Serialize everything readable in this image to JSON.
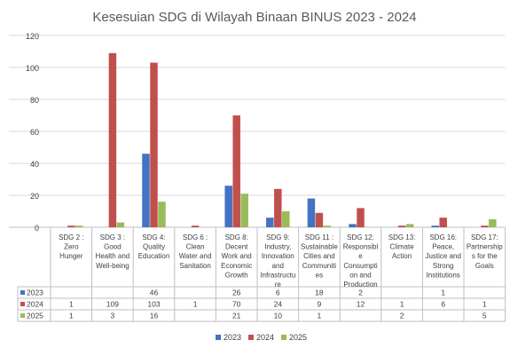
{
  "chart_data": {
    "type": "bar",
    "title": "Kesesuian SDG di Wilayah Binaan BINUS 2023 - 2024",
    "categories": [
      "SDG 2 : Zero Hunger",
      "SDG 3 : Good Health and Well-being",
      "SDG 4: Quality Education",
      "SDG 6 : Clean Water and Sanitation",
      "SDG 8: Decent Work and Economic Growth",
      "SDG 9: Industry, Innovation and Infrastructure",
      "SDG 11 : Sustainable Cities and Communities",
      "SDG 12: Responsible Consumption and Production",
      "SDG 13: Climate Action",
      "SDG 16: Peace, Justice and Strong Institutions",
      "SDG 17: Partnerships for the Goals"
    ],
    "category_label_lines": [
      [
        "SDG 2 :",
        "Zero",
        "Hunger"
      ],
      [
        "SDG 3 :",
        "Good",
        "Health and",
        "Well-being"
      ],
      [
        "SDG 4:",
        "Quality",
        "Education"
      ],
      [
        "SDG 6 :",
        "Clean",
        "Water and",
        "Sanitation"
      ],
      [
        "SDG 8:",
        "Decent",
        "Work and",
        "Economic",
        "Growth"
      ],
      [
        "SDG 9:",
        "Industry,",
        "Innovation",
        "and",
        "Infrastructu",
        "re"
      ],
      [
        "SDG 11 :",
        "Sustainable",
        "Cities and",
        "Communiti",
        "es"
      ],
      [
        "SDG 12:",
        "Responsibl",
        "e",
        "Consumpti",
        "on and",
        "Production"
      ],
      [
        "SDG 13:",
        "Climate",
        "Action"
      ],
      [
        "SDG 16:",
        "Peace,",
        "Justice and",
        "Strong",
        "Institutions"
      ],
      [
        "SDG 17:",
        "Partnership",
        "s for the",
        "Goals"
      ]
    ],
    "series": [
      {
        "name": "2023",
        "color": "#4472c4",
        "values": [
          null,
          null,
          46,
          null,
          26,
          6,
          18,
          2,
          null,
          1,
          null
        ]
      },
      {
        "name": "2024",
        "color": "#c0504d",
        "values": [
          1,
          109,
          103,
          1,
          70,
          24,
          9,
          12,
          1,
          6,
          1
        ]
      },
      {
        "name": "2025",
        "color": "#9bbb59",
        "values": [
          1,
          3,
          16,
          null,
          21,
          10,
          1,
          null,
          2,
          null,
          5
        ]
      }
    ],
    "ylim": [
      0,
      120
    ],
    "yticks": [
      0,
      20,
      40,
      60,
      80,
      100,
      120
    ],
    "grid": true,
    "legend": "bottom",
    "data_table": true
  }
}
